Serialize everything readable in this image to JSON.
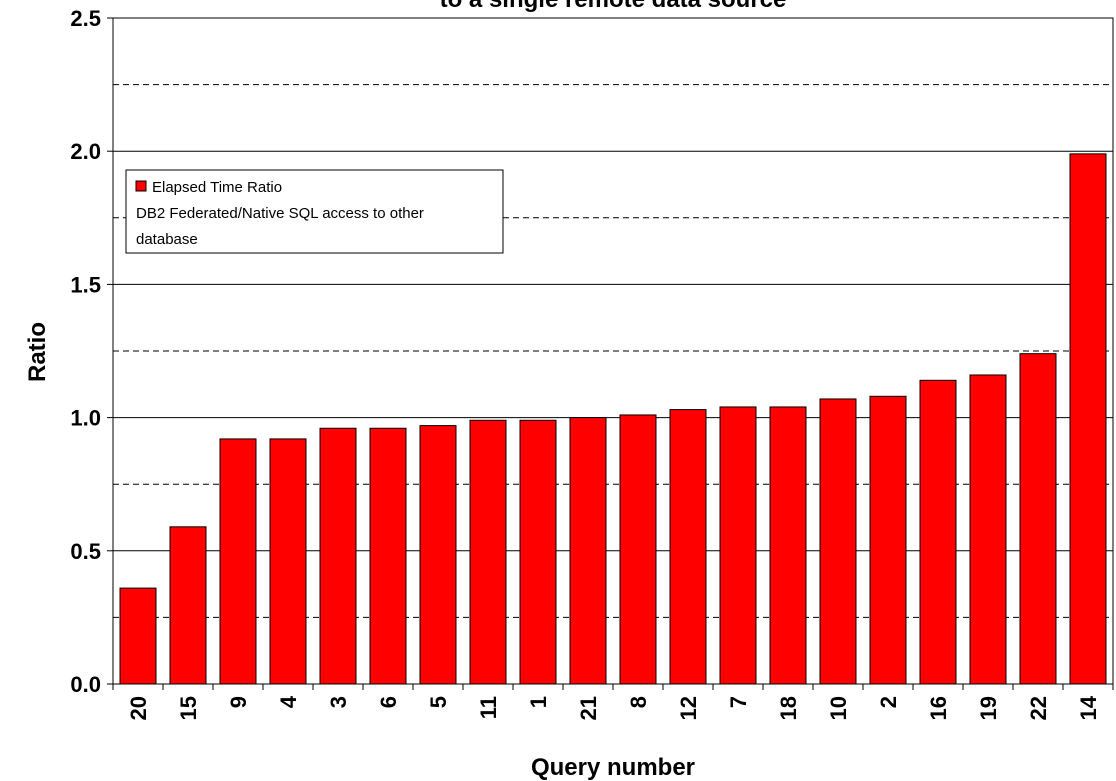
{
  "chart_data": {
    "type": "bar",
    "title": "to a single remote data source",
    "xlabel": "Query number",
    "ylabel": "Ratio",
    "ylim": [
      0,
      2.5
    ],
    "yticks": [
      "0.0",
      "0.5",
      "1.0",
      "1.5",
      "2.0",
      "2.5"
    ],
    "grid": true,
    "legend_position": "top-left",
    "bar_color": "#ff0000",
    "categories": [
      "20",
      "15",
      "9",
      "4",
      "3",
      "6",
      "5",
      "11",
      "1",
      "21",
      "8",
      "12",
      "7",
      "18",
      "10",
      "2",
      "16",
      "19",
      "22",
      "14"
    ],
    "series": [
      {
        "name": "Elapsed Time Ratio DB2 Federated/Native SQL access to other database",
        "values": [
          0.36,
          0.59,
          0.92,
          0.92,
          0.96,
          0.96,
          0.97,
          0.99,
          0.99,
          1.0,
          1.01,
          1.03,
          1.04,
          1.04,
          1.07,
          1.08,
          1.14,
          1.16,
          1.24,
          1.99
        ]
      }
    ]
  },
  "legend": {
    "line1": "Elapsed Time Ratio",
    "line2": "DB2 Federated/Native SQL access to other",
    "line3": "database"
  }
}
